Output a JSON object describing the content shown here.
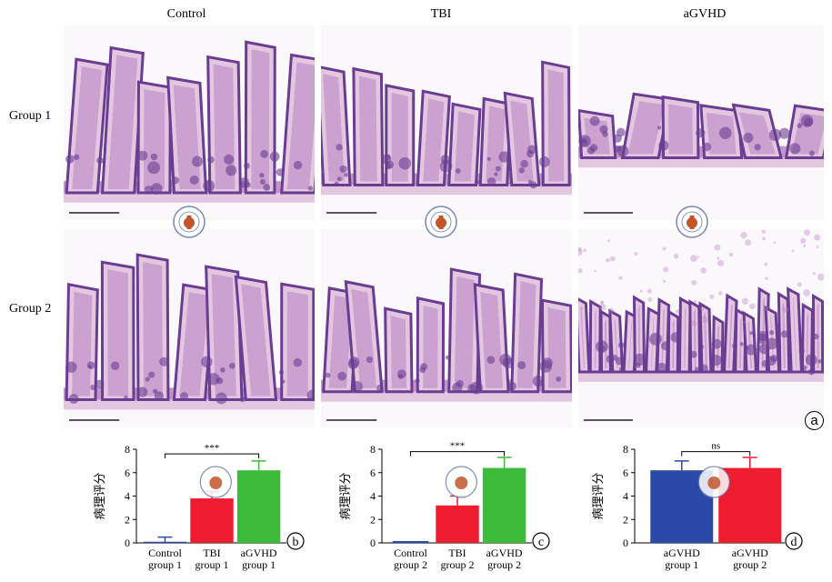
{
  "column_labels": [
    "Control",
    "TBI",
    "aGVHD"
  ],
  "row_labels": [
    "Group 1",
    "Group 2"
  ],
  "panel_a_label": "a",
  "colors": {
    "blue": "#2b49a8",
    "red": "#ee1c2e",
    "green": "#3dbb3a",
    "tissue_light": "#e3c6e0",
    "tissue_mid": "#b47bbd",
    "tissue_dark": "#6a3d92"
  },
  "chart_data": [
    {
      "type": "bar",
      "panel": "b",
      "ylabel": "病理评分",
      "ylim": [
        0,
        8
      ],
      "yticks": [
        0,
        2,
        4,
        6,
        8
      ],
      "categories": [
        [
          "Control",
          "group 1"
        ],
        [
          "TBI",
          "group 1"
        ],
        [
          "aGVHD",
          "group 1"
        ]
      ],
      "values": [
        0.1,
        3.8,
        6.2
      ],
      "errors": [
        0.4,
        0.6,
        0.8
      ],
      "colors": [
        "#2b49a8",
        "#ee1c2e",
        "#3dbb3a"
      ],
      "significance": "***",
      "sig_between": [
        0,
        2
      ]
    },
    {
      "type": "bar",
      "panel": "c",
      "ylabel": "病理评分",
      "ylim": [
        0,
        8
      ],
      "yticks": [
        0,
        2,
        4,
        6,
        8
      ],
      "categories": [
        [
          "Control",
          "group 2"
        ],
        [
          "TBI",
          "group 2"
        ],
        [
          "aGVHD",
          "group 2"
        ]
      ],
      "values": [
        0,
        3.2,
        6.4
      ],
      "errors": [
        0,
        0.8,
        0.9
      ],
      "colors": [
        "#2b49a8",
        "#ee1c2e",
        "#3dbb3a"
      ],
      "significance": "***",
      "sig_between": [
        0,
        2
      ]
    },
    {
      "type": "bar",
      "panel": "d",
      "ylabel": "病理评分",
      "ylim": [
        0,
        8
      ],
      "yticks": [
        0,
        2,
        4,
        6,
        8
      ],
      "categories": [
        [
          "aGVHD",
          "group 1"
        ],
        [
          "aGVHD",
          "group 2"
        ]
      ],
      "values": [
        6.2,
        6.4
      ],
      "errors": [
        0.8,
        0.9
      ],
      "colors": [
        "#2b49a8",
        "#ee1c2e"
      ],
      "significance": "ns",
      "sig_between": [
        0,
        1
      ]
    }
  ]
}
